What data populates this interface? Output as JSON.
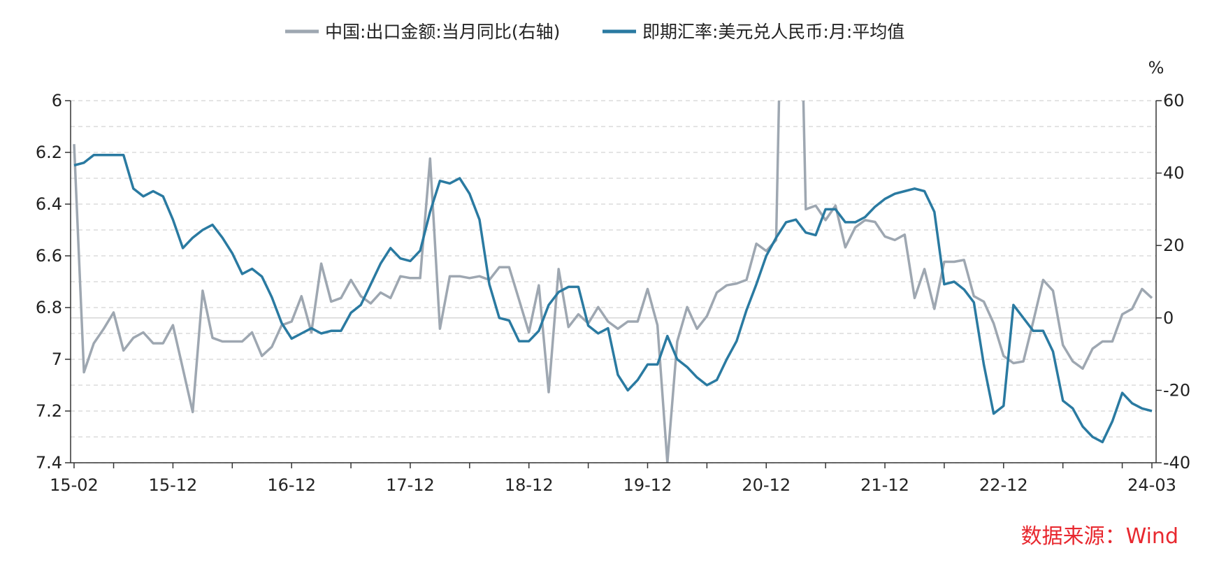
{
  "chart_data": {
    "type": "line",
    "legend": {
      "placement": "top-center",
      "entries": [
        {
          "name": "中国:出口金额:当月同比(右轴)",
          "color": "#9ea7b1"
        },
        {
          "name": "即期汇率:美元兑人民币:月:平均值",
          "color": "#2a7aa1"
        }
      ]
    },
    "left_axis": {
      "min": 6.0,
      "max": 7.4,
      "inverted": true,
      "ticks": [
        "6",
        "6.2",
        "6.4",
        "6.6",
        "6.8",
        "7",
        "7.2",
        "7.4"
      ],
      "tick_values": [
        6.0,
        6.2,
        6.4,
        6.6,
        6.8,
        7.0,
        7.2,
        7.4
      ]
    },
    "right_axis": {
      "unit_label": "%",
      "min": -40,
      "max": 60,
      "ticks": [
        "60",
        "40",
        "20",
        "0",
        "-20",
        "-40"
      ],
      "tick_values": [
        60,
        40,
        20,
        0,
        -20,
        -40
      ]
    },
    "x_axis": {
      "start": "2015-02",
      "end": "2024-03",
      "tick_labels": [
        {
          "label": "15-02",
          "index": 0
        },
        {
          "label": "15-12",
          "index": 10
        },
        {
          "label": "16-12",
          "index": 22
        },
        {
          "label": "17-12",
          "index": 34
        },
        {
          "label": "18-12",
          "index": 46
        },
        {
          "label": "19-12",
          "index": 58
        },
        {
          "label": "20-12",
          "index": 70
        },
        {
          "label": "21-12",
          "index": 82
        },
        {
          "label": "22-12",
          "index": 94
        },
        {
          "label": "24-03",
          "index": 109
        }
      ]
    },
    "grid": "horizontal-dashed",
    "series": [
      {
        "name": "即期汇率:美元兑人民币:月:平均值",
        "axis": "left",
        "color": "#2a7aa1",
        "values": [
          6.25,
          6.24,
          6.21,
          6.21,
          6.21,
          6.21,
          6.34,
          6.37,
          6.35,
          6.37,
          6.46,
          6.57,
          6.53,
          6.5,
          6.48,
          6.53,
          6.59,
          6.67,
          6.65,
          6.68,
          6.76,
          6.86,
          6.92,
          6.9,
          6.88,
          6.9,
          6.89,
          6.89,
          6.82,
          6.79,
          6.71,
          6.63,
          6.57,
          6.61,
          6.62,
          6.58,
          6.43,
          6.31,
          6.32,
          6.3,
          6.36,
          6.46,
          6.71,
          6.84,
          6.85,
          6.93,
          6.93,
          6.89,
          6.79,
          6.74,
          6.72,
          6.72,
          6.87,
          6.9,
          6.88,
          7.06,
          7.12,
          7.08,
          7.02,
          7.02,
          6.91,
          7.0,
          7.03,
          7.07,
          7.1,
          7.08,
          7.0,
          6.93,
          6.81,
          6.71,
          6.6,
          6.53,
          6.47,
          6.46,
          6.51,
          6.52,
          6.42,
          6.42,
          6.47,
          6.47,
          6.45,
          6.41,
          6.38,
          6.36,
          6.35,
          6.34,
          6.35,
          6.43,
          6.71,
          6.7,
          6.73,
          6.78,
          7.02,
          7.21,
          7.18,
          6.79,
          6.84,
          6.89,
          6.89,
          6.97,
          7.16,
          7.19,
          7.26,
          7.3,
          7.32,
          7.24,
          7.13,
          7.17,
          7.19,
          7.2
        ]
      },
      {
        "name": "中国:出口金额:当月同比(右轴)",
        "axis": "right",
        "color": "#9ea7b1",
        "values": [
          48.0,
          -15.0,
          -7.0,
          -3.0,
          1.5,
          -9.0,
          -5.5,
          -4.0,
          -7.0,
          -7.0,
          -2.0,
          -14.0,
          -26.0,
          7.5,
          -5.5,
          -6.5,
          -6.5,
          -6.5,
          -4.0,
          -10.5,
          -8.0,
          -2.0,
          -1.0,
          6.0,
          -4.0,
          15.0,
          4.5,
          5.5,
          10.5,
          6.0,
          4.0,
          7.0,
          5.5,
          11.5,
          11.0,
          11.0,
          44.0,
          -3.0,
          11.5,
          11.5,
          11.0,
          11.5,
          10.5,
          14.0,
          14.0,
          5.0,
          -4.0,
          9.0,
          -20.5,
          13.5,
          -2.5,
          1.0,
          -1.5,
          3.0,
          -1.0,
          -3.0,
          -1.0,
          -1.0,
          8.0,
          -2.0,
          -40.0,
          -6.5,
          3.0,
          -3.0,
          0.5,
          7.0,
          9.0,
          9.5,
          10.5,
          20.5,
          18.5,
          21.5,
          155.0,
          155.0,
          30.0,
          31.0,
          27.0,
          31.0,
          19.5,
          25.0,
          27.0,
          26.5,
          22.5,
          21.5,
          23.0,
          5.5,
          13.5,
          2.5,
          15.5,
          15.5,
          16.0,
          6.0,
          4.5,
          -1.5,
          -10.5,
          -12.5,
          -12.0,
          -1.0,
          10.5,
          7.5,
          -7.5,
          -12.0,
          -14.0,
          -8.5,
          -6.5,
          -6.5,
          1.0,
          2.5,
          8.0,
          5.5
        ]
      }
    ]
  },
  "source": {
    "label": "数据来源：Wind",
    "color": "#e8282f"
  }
}
